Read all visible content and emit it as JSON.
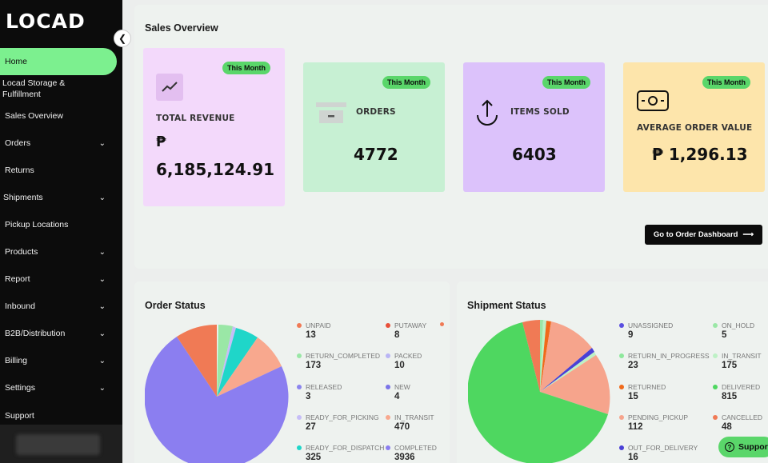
{
  "brand": {
    "logo": "LOCAD"
  },
  "sidebar": {
    "items": [
      {
        "label": "Home",
        "active": true,
        "chevron": false
      },
      {
        "label": "Locad Storage & Fulfillment",
        "chevron": false
      },
      {
        "label": "Sales Overview",
        "chevron": false
      },
      {
        "label": "Orders",
        "chevron": true
      },
      {
        "label": "Returns",
        "chevron": false
      },
      {
        "label": "Shipments",
        "chevron": true
      },
      {
        "label": "Pickup Locations",
        "chevron": false
      },
      {
        "label": "Products",
        "chevron": true
      },
      {
        "label": "Report",
        "chevron": true
      },
      {
        "label": "Inbound",
        "chevron": true
      },
      {
        "label": "B2B/Distribution",
        "chevron": true
      },
      {
        "label": "Billing",
        "chevron": true
      },
      {
        "label": "Settings",
        "chevron": true
      },
      {
        "label": "Support",
        "chevron": false
      }
    ]
  },
  "sales_overview": {
    "title": "Sales Overview",
    "cards": [
      {
        "badge": "This Month",
        "label": "TOTAL REVENUE",
        "currency": "₱",
        "value": "6,185,124.91",
        "bg": "#f3d9fb",
        "icon": "trend-up-icon"
      },
      {
        "badge": "This Month",
        "label": "ORDERS",
        "value": "4772",
        "bg": "#c7f0d3",
        "icon": "inbox-icon"
      },
      {
        "badge": "This Month",
        "label": "ITEMS SOLD",
        "value": "6403",
        "bg": "#dcc2fb",
        "icon": "upload-icon"
      },
      {
        "badge": "This Month",
        "label": "AVERAGE ORDER VALUE",
        "value": "₱ 1,296.13",
        "bg": "#fde5ab",
        "icon": "cash-icon"
      }
    ],
    "dashboard_button": "Go to Order Dashboard",
    "dashboard_arrow": "⟶"
  },
  "order_status": {
    "title": "Order Status",
    "legend": [
      {
        "name": "UNPAID",
        "value": "13",
        "color": "#f07a55"
      },
      {
        "name": "PUTAWAY",
        "value": "8",
        "color": "#e8503a"
      },
      {
        "name": "RETURN_COMPLETED",
        "value": "173",
        "color": "#9ae7a6"
      },
      {
        "name": "PACKED",
        "value": "10",
        "color": "#b9b5f5"
      },
      {
        "name": "RELEASED",
        "value": "3",
        "color": "#8b84ee"
      },
      {
        "name": "NEW",
        "value": "4",
        "color": "#7b74e8"
      },
      {
        "name": "READY_FOR_PICKING",
        "value": "27",
        "color": "#c6bdf7"
      },
      {
        "name": "IN_TRANSIT",
        "value": "470",
        "color": "#f8a88e"
      },
      {
        "name": "READY_FOR_DISPATCH",
        "value": "325",
        "color": "#1fd6c9"
      },
      {
        "name": "COMPLETED",
        "value": "3936",
        "color": "#8b7ef0"
      }
    ]
  },
  "shipment_status": {
    "title": "Shipment Status",
    "legend": [
      {
        "name": "UNASSIGNED",
        "value": "9",
        "color": "#5a4fe0"
      },
      {
        "name": "ON_HOLD",
        "value": "5",
        "color": "#9ae7a6"
      },
      {
        "name": "RETURN_IN_PROGRESS",
        "value": "23",
        "color": "#8ee89c"
      },
      {
        "name": "IN_TRANSIT",
        "value": "175",
        "color": "#bdf1c5"
      },
      {
        "name": "RETURNED",
        "value": "15",
        "color": "#f06a1a"
      },
      {
        "name": "DELIVERED",
        "value": "815",
        "color": "#4ed760"
      },
      {
        "name": "PENDING_PICKUP",
        "value": "112",
        "color": "#f6a48c"
      },
      {
        "name": "CANCELLED",
        "value": "48",
        "color": "#f07a55"
      },
      {
        "name": "OUT_FOR_DELIVERY",
        "value": "16",
        "color": "#4a40d6"
      }
    ]
  },
  "support_button": "Support"
}
